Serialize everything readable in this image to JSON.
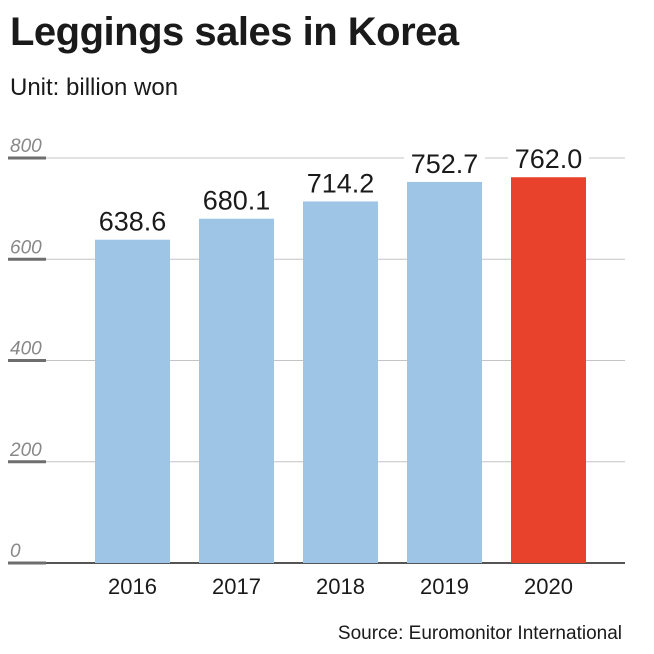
{
  "header": {
    "title": "Leggings sales in Korea",
    "unit": "Unit: billion won"
  },
  "footer": {
    "source": "Source: Euromonitor International"
  },
  "colors": {
    "bar": "#9ec5e6",
    "highlight": "#e8412c",
    "grid": "#c4c4c4",
    "tick_mark": "#6e6e6e"
  },
  "chart_data": {
    "type": "bar",
    "title": "Leggings sales in Korea",
    "subtitle": "Unit: billion won",
    "categories": [
      "2016",
      "2017",
      "2018",
      "2019",
      "2020"
    ],
    "values": [
      638.6,
      680.1,
      714.2,
      752.7,
      762.0
    ],
    "value_labels": [
      "638.6",
      "680.1",
      "714.2",
      "752.7",
      "762.0"
    ],
    "highlight_index": 4,
    "ylim": [
      0,
      800
    ],
    "yticks": [
      0,
      200,
      400,
      600,
      800
    ],
    "grid": true,
    "legend": "none"
  }
}
